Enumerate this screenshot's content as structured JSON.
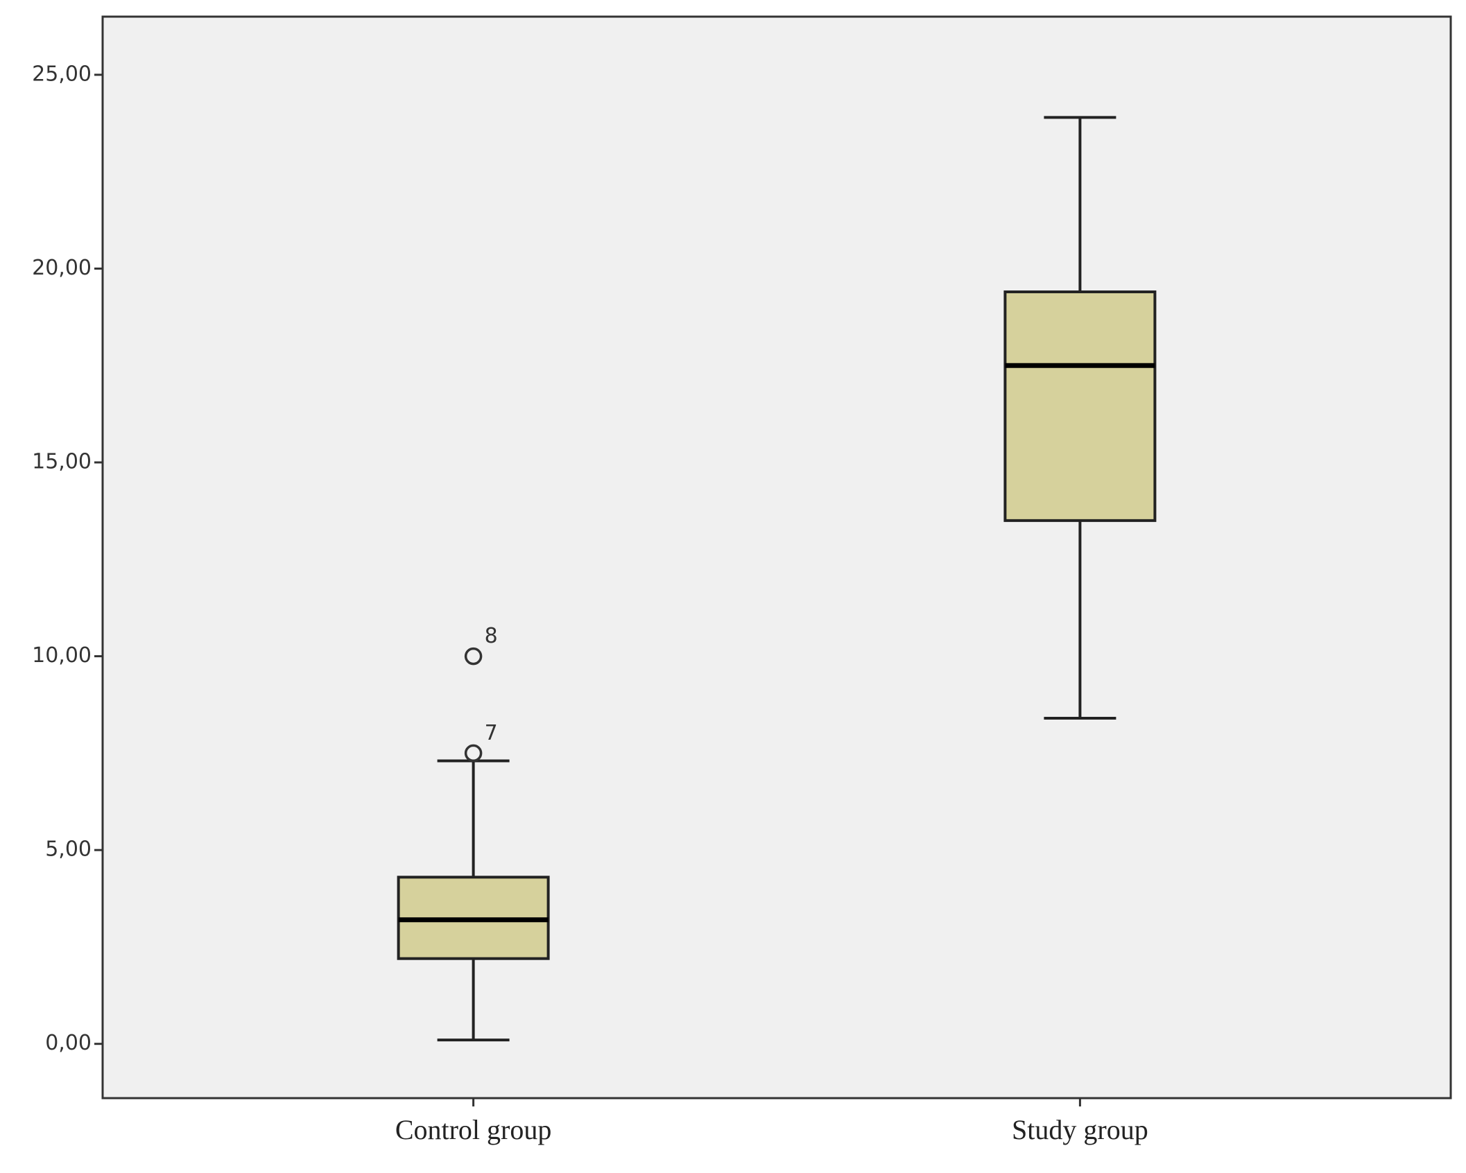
{
  "chart_data": {
    "type": "box",
    "categories": [
      "Control group",
      "Study group"
    ],
    "color": "#d6d19c",
    "background": "#f0f0f0",
    "boxes": [
      {
        "min": 0.1,
        "q1": 2.2,
        "median": 3.2,
        "q3": 4.3,
        "max": 7.3,
        "outliers": [
          {
            "value": 7.5,
            "label": "7"
          },
          {
            "value": 10.0,
            "label": "8"
          }
        ]
      },
      {
        "min": 8.4,
        "q1": 13.5,
        "median": 17.5,
        "q3": 19.4,
        "max": 23.9,
        "outliers": []
      }
    ],
    "ylim": [
      -1.4,
      26.5
    ],
    "yticks": [
      {
        "value": 0,
        "label": "0,00"
      },
      {
        "value": 5,
        "label": "5,00"
      },
      {
        "value": 10,
        "label": "10,00"
      },
      {
        "value": 15,
        "label": "15,00"
      },
      {
        "value": 20,
        "label": "20,00"
      },
      {
        "value": 25,
        "label": "25,00"
      }
    ]
  }
}
